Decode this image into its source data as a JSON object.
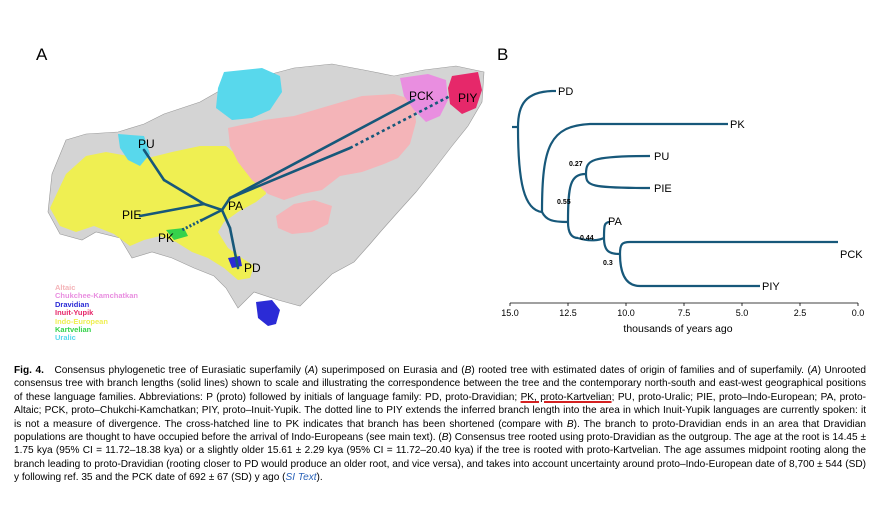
{
  "panels": {
    "a": "A",
    "b": "B"
  },
  "map": {
    "node_labels": {
      "pck": "PCK",
      "piy": "PIY",
      "pu": "PU",
      "pa": "PA",
      "pie": "PIE",
      "pk": "PK",
      "pd": "PD"
    },
    "legend": [
      {
        "label": "Altaic",
        "color": "#f4b4b8"
      },
      {
        "label": "Chukchee-Kamchatkan",
        "color": "#e98ee0"
      },
      {
        "label": "Dravidian",
        "color": "#2b2bd6"
      },
      {
        "label": "Inuit-Yupik",
        "color": "#e6286a"
      },
      {
        "label": "Indo-European",
        "color": "#efef52"
      },
      {
        "label": "Kartvelian",
        "color": "#35d24b"
      },
      {
        "label": "Uralic",
        "color": "#58d8ec"
      }
    ],
    "colors": {
      "background": "#d4d4d4",
      "altaic": "#f4b4b8",
      "chukchee": "#e98ee0",
      "dravidian": "#2b2bd6",
      "inuit": "#e6286a",
      "indo_european": "#efef52",
      "kartvelian": "#35d24b",
      "uralic": "#58d8ec",
      "tree": "#17587a"
    }
  },
  "tree": {
    "leaves": {
      "pd": "PD",
      "pk": "PK",
      "pu": "PU",
      "pie": "PIE",
      "pa": "PA",
      "pck": "PCK",
      "piy": "PIY"
    },
    "supports": {
      "n1": "0.27",
      "n2": "0.55",
      "n3": "0.44",
      "n4": "0.3"
    },
    "axis": {
      "ticks": [
        "15.0",
        "12.5",
        "10.0",
        "7.5",
        "5.0",
        "2.5",
        "0.0"
      ],
      "label": "thousands of years ago"
    },
    "line_color": "#17587a"
  },
  "caption": {
    "fig_label": "Fig. 4.",
    "s1": "Consensus phylogenetic tree of Eurasiatic superfamily (",
    "i1": "A",
    "s2": ") superimposed on Eurasia and (",
    "i2": "B",
    "s3": ") rooted tree with estimated dates of origin of families and of superfamily. (",
    "i3": "A",
    "s4": ") Unrooted consensus tree with branch lengths (solid lines) shown to scale and illustrating the correspondence between the tree and the contemporary north-south and east-west geographical positions of these language families. Abbreviations: P (proto) followed by initials of language family: PD, proto-Dravidian; ",
    "u1": "PK, proto-Kartvelian",
    "s5": "; PU, proto-Uralic; PIE, proto–Indo-European; PA, proto-Altaic; PCK, proto–Chukchi-Kamchatkan; PIY, proto–Inuit-Yupik. The dotted line to PIY extends the inferred branch length into the area in which Inuit-Yupik languages are currently spoken: it is not a measure of divergence. The cross-hatched line to PK indicates that branch has been shortened (compare with ",
    "i4": "B",
    "s6": "). The branch to proto-Dravidian ends in an area that Dravidian populations are thought to have occupied before the arrival of Indo-Europeans (see main text). (",
    "i5": "B",
    "s7": ") Consensus tree rooted using proto-Dravidian as the outgroup. The age at the root is 14.45 ± 1.75 kya (95% CI = 11.72–18.38 kya) or a slightly older 15.61 ± 2.29 kya (95% CI = 11.72–20.40 kya) if the tree is rooted with proto-Kartvelian. The age assumes midpoint rooting along the branch leading to proto-Dravidian (rooting closer to PD would produce an older root, and vice versa), and takes into account uncertainty around proto–Indo-European date of 8,700 ± 544 (SD) y following ref. 35 and the PCK date of 692 ± 67 (SD) y ago (",
    "lnk": "SI Text",
    "s8": ")."
  }
}
